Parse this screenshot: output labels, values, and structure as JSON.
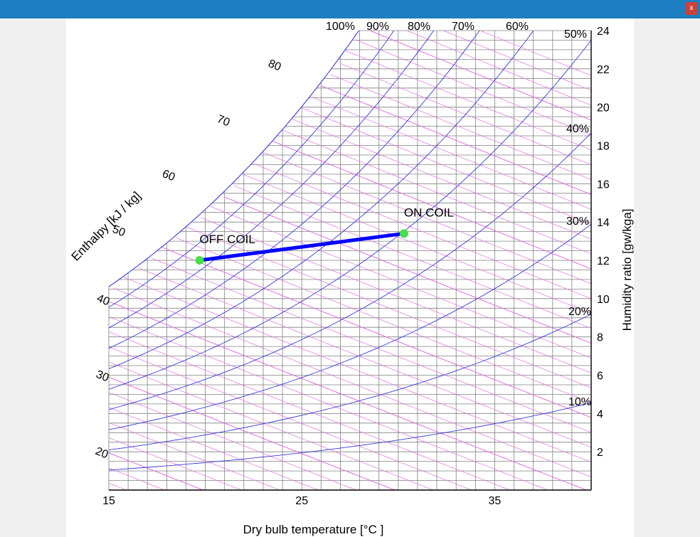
{
  "window": {
    "close_label": "x"
  },
  "chart_data": {
    "type": "line",
    "title": "",
    "xlabel": "Dry bulb temperature [°C ]",
    "ylabel": "Humidity ratio [gw/kga]",
    "enthalpy_label": "Enthalpy [kJ / kg]",
    "xlim": [
      15,
      40
    ],
    "ylim": [
      0,
      24
    ],
    "x_ticks": [
      15,
      25,
      35
    ],
    "y_ticks": [
      2,
      4,
      6,
      8,
      10,
      12,
      14,
      16,
      18,
      20,
      22,
      24
    ],
    "rh_lines": [
      10,
      20,
      30,
      40,
      50,
      60,
      70,
      80,
      90,
      100
    ],
    "rh_label_texts": [
      "10%",
      "20%",
      "30%",
      "40%",
      "50%",
      "60%",
      "70%",
      "80%",
      "90%",
      "100%"
    ],
    "enthalpy_ticks": [
      20,
      30,
      40,
      50,
      60,
      70,
      80
    ],
    "grid": true,
    "colors": {
      "rh_lines": "#3a3ad8",
      "enthalpy_lines": "#e070e0",
      "grid": "#808080",
      "process_line": "#0000ff",
      "state_points": "#44e044"
    },
    "process": {
      "points": [
        {
          "name": "OFF COIL",
          "x": 19.7,
          "y": 12.0
        },
        {
          "name": "ON COIL",
          "x": 30.3,
          "y": 13.4
        }
      ]
    }
  }
}
